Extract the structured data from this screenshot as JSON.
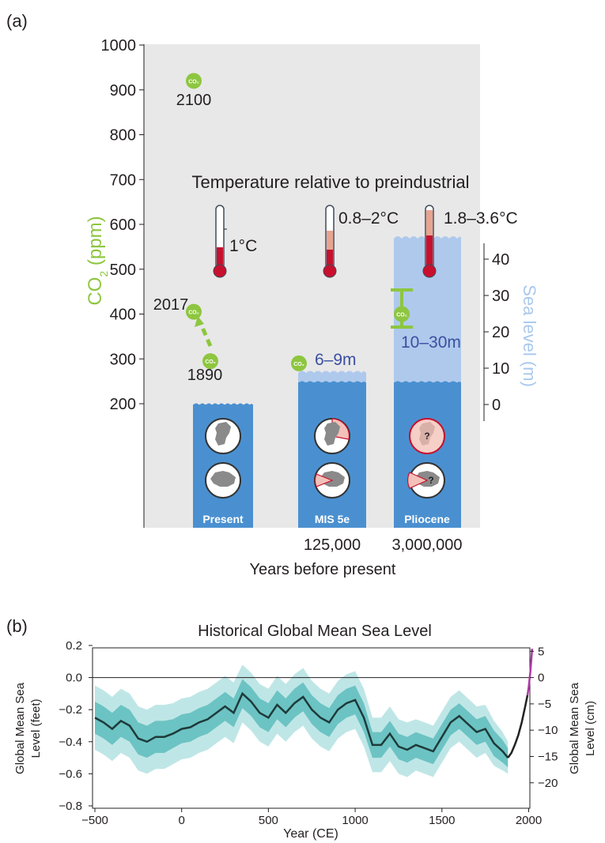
{
  "panel_a": {
    "label": "(a)",
    "ylabel_main": "CO",
    "ylabel_sub": "2",
    "ylabel_unit": " (ppm)",
    "y2label": "Sea level (m)",
    "xlabel": "Years before present",
    "temp_heading": "Temperature relative to preindustrial",
    "co2_icon_text": "CO₂",
    "question_mark": "?",
    "colors": {
      "co2": "#8dc63f",
      "ocean": "#4a90d0",
      "ocean_light": "#aec9ec",
      "plot_bg": "#e8e8e8",
      "thermo_red": "#c8102e",
      "thermo_pink": "#e8a48f",
      "sea_range_text": "#3a4fa0",
      "y2label": "#a9c8ec"
    }
  },
  "panel_b": {
    "label": "(b)",
    "colors": {
      "mean": "#1f3a3a",
      "band_inner": "#6cc3c3",
      "band_outer": "#bfe6e6",
      "tide_gauge": "#222222",
      "satellite": "#b03aa8"
    }
  },
  "chart_data": [
    {
      "type": "scatter",
      "title": "",
      "ylabel": "CO₂ (ppm)",
      "y2label": "Sea level (m)",
      "xlabel": "Years before present",
      "ylim": [
        200,
        1000
      ],
      "yticks": [
        200,
        300,
        400,
        500,
        600,
        700,
        800,
        900,
        1000
      ],
      "y2lim": [
        0,
        40
      ],
      "y2ticks": [
        0,
        10,
        20,
        30,
        40
      ],
      "categories": [
        "Present",
        "MIS 5e",
        "Pliocene"
      ],
      "x_tick_labels": [
        "",
        "125,000",
        "3,000,000"
      ],
      "co2_points": [
        {
          "label": "2100",
          "period": "Present",
          "value": 920
        },
        {
          "label": "2017",
          "period": "Present",
          "value": 405
        },
        {
          "label": "1890",
          "period": "Present",
          "value": 295
        },
        {
          "label": "",
          "period": "MIS 5e",
          "value": 290
        },
        {
          "label": "",
          "period": "Pliocene",
          "value": 400,
          "range": [
            350,
            450
          ]
        }
      ],
      "temperature": [
        {
          "period": "Present",
          "label": "1°C"
        },
        {
          "period": "MIS 5e",
          "label": "0.8–2°C"
        },
        {
          "period": "Pliocene",
          "label": "1.8–3.6°C"
        }
      ],
      "sea_level": [
        {
          "period": "Present",
          "value": 0,
          "label": ""
        },
        {
          "period": "MIS 5e",
          "value": [
            6,
            9
          ],
          "label": "6–9m"
        },
        {
          "period": "Pliocene",
          "value": [
            10,
            30
          ],
          "label": "10–30m"
        }
      ]
    },
    {
      "type": "line",
      "title": "Historical Global Mean Sea Level",
      "xlabel": "Year (CE)",
      "ylabel": "Global Mean Sea Level (feet)",
      "y2label": "Global Mean Sea Level (cm)",
      "xlim": [
        -500,
        2020
      ],
      "xticks": [
        -500,
        0,
        500,
        1000,
        1500,
        2000
      ],
      "ylim": [
        -0.8,
        0.2
      ],
      "yticks": [
        -0.8,
        -0.6,
        -0.4,
        -0.2,
        0.0,
        0.2
      ],
      "ytick_labels": [
        "−0.8",
        "−0.6",
        "−0.4",
        "−0.2",
        "0.0",
        "0.2"
      ],
      "y2ticks": [
        5,
        0,
        -5,
        -10,
        -15,
        -20
      ],
      "y2tick_labels": [
        "5",
        "0",
        "−5",
        "−10",
        "−15",
        "−20"
      ],
      "x_tick_labels": [
        "−500",
        "0",
        "500",
        "1000",
        "1500",
        "2000"
      ],
      "series": [
        {
          "x": [
            -500,
            -450,
            -400,
            -350,
            -300,
            -250,
            -200,
            -150,
            -100,
            -50,
            0,
            50,
            100,
            150,
            200,
            250,
            300,
            350,
            400,
            450,
            500,
            550,
            600,
            650,
            700,
            750,
            800,
            850,
            900,
            950,
            1000,
            1050,
            1100,
            1150,
            1200,
            1250,
            1300,
            1350,
            1400,
            1450,
            1500,
            1550,
            1600,
            1650,
            1700,
            1750,
            1800,
            1850,
            1880
          ],
          "y": [
            -0.25,
            -0.28,
            -0.32,
            -0.27,
            -0.3,
            -0.38,
            -0.4,
            -0.37,
            -0.37,
            -0.35,
            -0.32,
            -0.31,
            -0.28,
            -0.26,
            -0.22,
            -0.18,
            -0.22,
            -0.1,
            -0.15,
            -0.22,
            -0.25,
            -0.17,
            -0.22,
            -0.16,
            -0.12,
            -0.2,
            -0.25,
            -0.28,
            -0.2,
            -0.16,
            -0.14,
            -0.25,
            -0.42,
            -0.42,
            -0.35,
            -0.43,
            -0.45,
            -0.42,
            -0.44,
            -0.46,
            -0.37,
            -0.28,
            -0.24,
            -0.29,
            -0.34,
            -0.32,
            -0.41,
            -0.46,
            -0.5
          ],
          "band_inner": [
            0.1,
            0.1,
            0.1,
            0.1,
            0.1,
            0.1,
            0.1,
            0.1,
            0.1,
            0.09,
            0.09,
            0.09,
            0.09,
            0.09,
            0.09,
            0.09,
            0.09,
            0.09,
            0.09,
            0.09,
            0.09,
            0.09,
            0.09,
            0.09,
            0.09,
            0.09,
            0.09,
            0.09,
            0.09,
            0.09,
            0.09,
            0.09,
            0.08,
            0.08,
            0.08,
            0.08,
            0.08,
            0.08,
            0.08,
            0.08,
            0.08,
            0.08,
            0.08,
            0.08,
            0.08,
            0.08,
            0.08,
            0.07,
            0.06
          ],
          "band_outer": [
            0.2,
            0.2,
            0.2,
            0.2,
            0.2,
            0.2,
            0.2,
            0.2,
            0.2,
            0.19,
            0.19,
            0.19,
            0.19,
            0.19,
            0.19,
            0.19,
            0.19,
            0.18,
            0.18,
            0.18,
            0.18,
            0.18,
            0.18,
            0.18,
            0.18,
            0.18,
            0.18,
            0.18,
            0.18,
            0.18,
            0.18,
            0.18,
            0.17,
            0.17,
            0.17,
            0.17,
            0.17,
            0.16,
            0.16,
            0.16,
            0.16,
            0.16,
            0.16,
            0.16,
            0.16,
            0.15,
            0.14,
            0.12,
            0.1
          ]
        },
        {
          "x": [
            1880,
            1900,
            1920,
            1940,
            1960,
            1980,
            1993
          ],
          "y": [
            -0.5,
            -0.47,
            -0.42,
            -0.36,
            -0.28,
            -0.18,
            -0.11
          ]
        },
        {
          "x": [
            1993,
            2000,
            2010,
            2020
          ],
          "y": [
            -0.11,
            -0.06,
            0.04,
            0.18
          ]
        }
      ]
    }
  ]
}
